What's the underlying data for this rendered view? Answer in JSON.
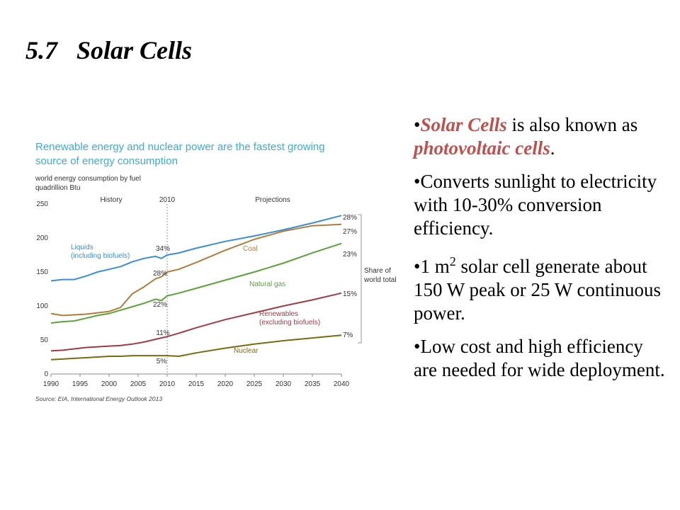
{
  "slide": {
    "title": "5.7   Solar Cells",
    "bullets": [
      {
        "prefix": "•",
        "em1": "Solar Cells",
        "mid": " is also known as ",
        "em2": "photovoltaic cells",
        "end": "."
      },
      {
        "text": "•Converts sunlight to electricity with 10-30% conversion efficiency."
      },
      {
        "pre": "•1 m",
        "sup": "2",
        "post": " solar cell generate about 150 W peak or 25 W continuous power."
      },
      {
        "text": "•Low cost and high efficiency are needed for wide deployment."
      }
    ]
  },
  "chart_data": {
    "type": "line",
    "title": "Renewable energy and nuclear power are the fastest growing source of energy consumption",
    "ylabel_lines": [
      "world energy consumption by fuel",
      "quadrillion Btu"
    ],
    "section_labels": {
      "history": "History",
      "split": "2010",
      "projections": "Projections"
    },
    "split_year": 2010,
    "xlim": [
      1990,
      2040
    ],
    "ylim": [
      0,
      250
    ],
    "x_ticks": [
      1990,
      1995,
      2000,
      2005,
      2010,
      2015,
      2020,
      2025,
      2030,
      2035,
      2040
    ],
    "y_ticks": [
      0,
      50,
      100,
      150,
      200,
      250
    ],
    "source": "Source:  EIA, International Energy Outlook 2013",
    "share_label_lines": [
      "Share of",
      "world total"
    ],
    "colors": {
      "liquids": "#3a8fd1",
      "coal": "#b07d3a",
      "natural_gas": "#5aa23c",
      "renewables": "#a13a46",
      "nuclear": "#7a6a12",
      "title": "#3fa9d8",
      "axis": "#888888"
    },
    "series": [
      {
        "key": "liquids",
        "name_lines": [
          "Liquids",
          "(including biofuels)"
        ],
        "share_2010": "34%",
        "share_2040": "28%",
        "x": [
          1990,
          1992,
          1994,
          1996,
          1998,
          2000,
          2002,
          2004,
          2006,
          2008,
          2009,
          2010,
          2012,
          2015,
          2020,
          2025,
          2030,
          2035,
          2040
        ],
        "y": [
          137,
          139,
          139,
          144,
          150,
          154,
          158,
          165,
          170,
          173,
          170,
          175,
          178,
          185,
          195,
          203,
          212,
          222,
          233
        ]
      },
      {
        "key": "coal",
        "name_lines": [
          "Coal"
        ],
        "share_2010": "28%",
        "share_2040": "27%",
        "x": [
          1990,
          1992,
          1994,
          1996,
          1998,
          2000,
          2002,
          2004,
          2006,
          2008,
          2009,
          2010,
          2012,
          2015,
          2020,
          2025,
          2030,
          2035,
          2040
        ],
        "y": [
          89,
          86,
          87,
          88,
          90,
          92,
          98,
          118,
          128,
          140,
          143,
          150,
          154,
          164,
          182,
          198,
          210,
          218,
          220
        ]
      },
      {
        "key": "natural_gas",
        "name_lines": [
          "Natural gas"
        ],
        "share_2010": "22%",
        "share_2040": "23%",
        "x": [
          1990,
          1992,
          1994,
          1996,
          1998,
          2000,
          2002,
          2004,
          2006,
          2008,
          2009,
          2010,
          2012,
          2015,
          2020,
          2025,
          2030,
          2035,
          2040
        ],
        "y": [
          75,
          77,
          78,
          82,
          86,
          89,
          94,
          99,
          104,
          110,
          108,
          115,
          119,
          126,
          138,
          150,
          163,
          178,
          192
        ]
      },
      {
        "key": "renewables",
        "name_lines": [
          "Renewables",
          "(excluding biofuels)"
        ],
        "share_2010": "11%",
        "share_2040": "15%",
        "x": [
          1990,
          1992,
          1994,
          1996,
          1998,
          2000,
          2002,
          2004,
          2006,
          2008,
          2010,
          2012,
          2015,
          2020,
          2025,
          2030,
          2035,
          2040
        ],
        "y": [
          34,
          35,
          37,
          39,
          40,
          41,
          42,
          44,
          47,
          51,
          55,
          60,
          68,
          80,
          90,
          100,
          109,
          119
        ]
      },
      {
        "key": "nuclear",
        "name_lines": [
          "Nuclear"
        ],
        "share_2010": "5%",
        "share_2040": "7%",
        "x": [
          1990,
          1992,
          1994,
          1996,
          1998,
          2000,
          2002,
          2004,
          2006,
          2008,
          2010,
          2012,
          2015,
          2020,
          2025,
          2030,
          2035,
          2040
        ],
        "y": [
          21,
          22,
          23,
          24,
          25,
          26,
          26,
          27,
          27,
          27,
          27,
          26,
          31,
          38,
          44,
          49,
          53,
          57
        ]
      }
    ]
  }
}
